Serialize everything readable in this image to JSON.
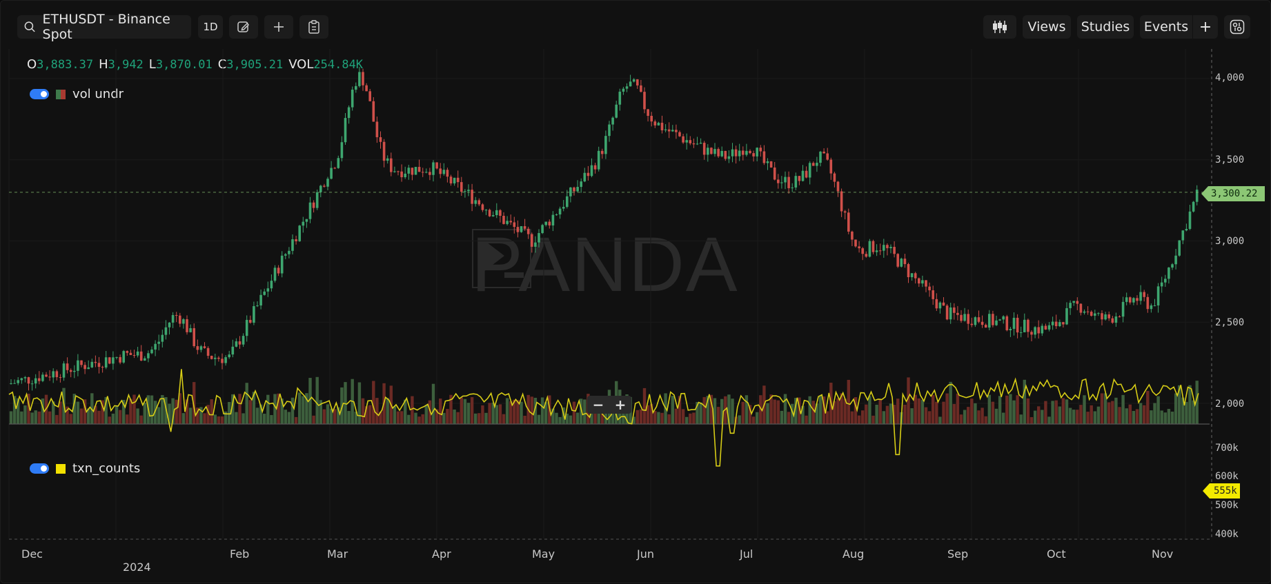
{
  "toolbar": {
    "symbol": "ETHUSDT - Binance Spot",
    "interval": "1D",
    "views_label": "Views",
    "studies_label": "Studies",
    "events_label": "Events",
    "add_label": "+"
  },
  "ohlc": {
    "o_label": "O",
    "o": "3,883.37",
    "h_label": "H",
    "h": "3,942",
    "l_label": "L",
    "l": "3,870.01",
    "c_label": "C",
    "c": "3,905.21",
    "vol_label": "VOL",
    "vol": "254.84K"
  },
  "legends": {
    "volume": {
      "label": "vol undr",
      "colors": [
        "#a93a31",
        "#3f7a4b"
      ]
    },
    "txn": {
      "label": "txn_counts",
      "color": "#f3e100"
    }
  },
  "watermark": "PANDA",
  "zoom": {
    "minus": "−",
    "plus": "+"
  },
  "colors": {
    "up": "#3ea66f",
    "down": "#d0504a",
    "vol_up": "#3d5f3d",
    "vol_down": "#6b2a24",
    "txn_line": "#d7cd16",
    "current_price_tag": "#8cc775",
    "txn_tag": "#f3ea00"
  },
  "price_axis": {
    "ticks": [
      "4,000",
      "3,500",
      "3,000",
      "2,500",
      "2,000"
    ],
    "current": "3,300.22"
  },
  "txn_axis": {
    "ticks": [
      "700k",
      "600k",
      "500k",
      "400k"
    ],
    "current": "555k"
  },
  "time_axis": {
    "months": [
      "Dec",
      "Feb",
      "Mar",
      "Apr",
      "May",
      "Jun",
      "Jul",
      "Aug",
      "Sep",
      "Oct",
      "Nov"
    ],
    "year": "2024"
  },
  "chart_data": {
    "type": "candlestick",
    "symbol": "ETHUSDT",
    "price_range": [
      2000,
      4150
    ],
    "current_price": 3300.22,
    "monthly_closes_approx": [
      {
        "month": "Dec",
        "close": 2280
      },
      {
        "month": "Jan",
        "close": 2280
      },
      {
        "month": "Feb",
        "close": 3350
      },
      {
        "month": "Mar",
        "close": 3600
      },
      {
        "month": "Apr",
        "close": 3000
      },
      {
        "month": "May",
        "close": 3750
      },
      {
        "month": "Jun",
        "close": 3450
      },
      {
        "month": "Jul",
        "close": 3250
      },
      {
        "month": "Aug",
        "close": 2500
      },
      {
        "month": "Sep",
        "close": 2600
      },
      {
        "month": "Oct",
        "close": 2500
      },
      {
        "month": "Nov",
        "close": 3300
      }
    ],
    "txn_counts_range": [
      400000,
      720000
    ],
    "txn_counts_current": 555000
  }
}
